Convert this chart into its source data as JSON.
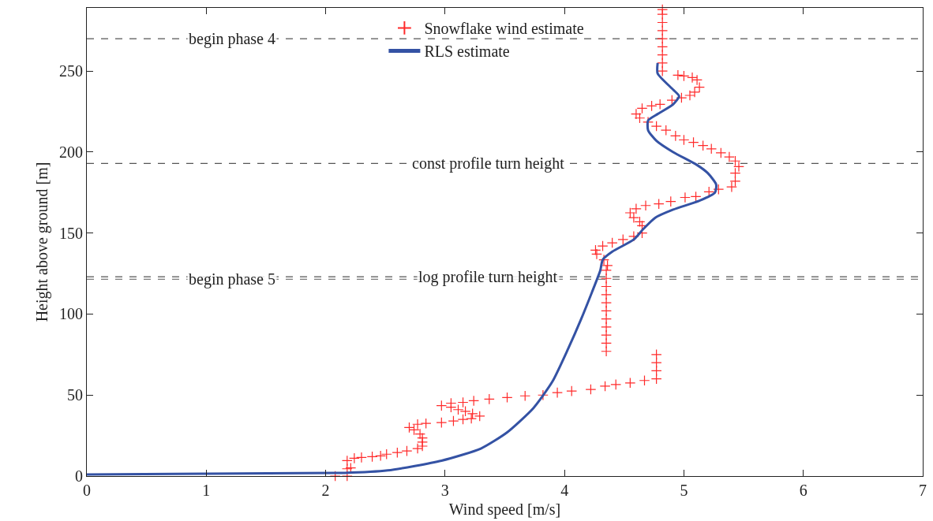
{
  "chart_data": {
    "type": "scatter",
    "xlabel": "Wind speed [m/s]",
    "ylabel": "Height above ground [m]",
    "xlim": [
      0,
      7
    ],
    "xticks": [
      0,
      1,
      2,
      3,
      4,
      5,
      6,
      7
    ],
    "ylim": [
      0,
      289
    ],
    "yticks": [
      0,
      50,
      100,
      150,
      200,
      250
    ],
    "grid": false,
    "legend": "top",
    "series": [
      {
        "name": "Snowflake wind estimate",
        "marker": "cross",
        "color": "#ff2a2a",
        "x": [
          2.08,
          2.18,
          2.18,
          2.21,
          2.18,
          2.24,
          2.3,
          2.39,
          2.46,
          2.51,
          2.6,
          2.68,
          2.77,
          2.81,
          2.81,
          2.81,
          2.79,
          2.74,
          2.7,
          2.77,
          2.84,
          2.97,
          3.07,
          3.15,
          3.22,
          3.29,
          3.23,
          3.17,
          3.11,
          3.05,
          2.97,
          3.05,
          3.15,
          3.24,
          3.37,
          3.52,
          3.67,
          3.82,
          3.94,
          4.06,
          4.22,
          4.34,
          4.43,
          4.55,
          4.67,
          4.77,
          4.77,
          4.77,
          4.77,
          4.35,
          4.35,
          4.35,
          4.35,
          4.35,
          4.35,
          4.35,
          4.35,
          4.35,
          4.35,
          4.35,
          4.36,
          4.33,
          4.27,
          4.26,
          4.32,
          4.4,
          4.49,
          4.58,
          4.65,
          4.65,
          4.63,
          4.58,
          4.55,
          4.6,
          4.68,
          4.79,
          4.89,
          5.01,
          5.1,
          5.21,
          5.29,
          5.4,
          5.43,
          5.43,
          5.46,
          5.43,
          5.38,
          5.31,
          5.23,
          5.16,
          5.08,
          5.0,
          4.93,
          4.85,
          4.77,
          4.7,
          4.63,
          4.6,
          4.65,
          4.73,
          4.8,
          4.9,
          4.98,
          5.05,
          5.09,
          5.13,
          5.11,
          5.07,
          5.0,
          4.95,
          4.82,
          4.82,
          4.82,
          4.82,
          4.82,
          4.82,
          4.82,
          4.82,
          4.82
        ],
        "values": [
          0,
          0,
          4.5,
          5,
          9.5,
          11,
          11.5,
          12,
          12.5,
          13.5,
          14.5,
          15.5,
          17,
          18.5,
          21,
          23.5,
          26,
          28.5,
          30,
          32,
          32.5,
          33,
          34,
          35,
          35.5,
          37,
          38.5,
          40,
          41,
          42.5,
          43.5,
          45,
          45.5,
          46.5,
          47.5,
          48.5,
          49.5,
          50,
          51.5,
          52.5,
          53.5,
          55.5,
          56.5,
          57.5,
          59,
          60,
          65,
          70,
          75,
          77,
          82,
          87,
          92,
          97,
          102,
          107,
          112,
          117,
          122,
          127,
          130,
          133.5,
          137,
          139.5,
          142,
          144,
          146,
          148,
          150,
          154.5,
          157,
          159.5,
          162.5,
          165,
          167,
          168,
          169.5,
          172,
          172.5,
          175.5,
          177,
          178.5,
          182,
          187,
          191,
          194.5,
          197,
          199.5,
          202,
          204,
          206,
          207.5,
          210,
          213.5,
          216,
          218.5,
          221,
          223.5,
          227,
          228.5,
          229.5,
          232,
          233.5,
          235,
          237,
          240,
          244.5,
          246,
          247,
          247.5,
          250,
          255,
          260,
          265,
          270,
          275,
          280,
          285,
          288
        ]
      },
      {
        "name": "RLS estimate",
        "type": "line",
        "line_style": "solid",
        "marker": "none",
        "color": "#3452a4",
        "x": [
          0,
          1.0,
          2.08,
          2.16,
          2.52,
          2.97,
          3.3,
          3.52,
          3.74,
          3.9,
          4.03,
          4.14,
          4.23,
          4.3,
          4.32,
          4.4,
          4.58,
          4.66,
          4.76,
          4.91,
          5.13,
          5.26,
          5.27,
          5.2,
          5.11,
          4.91,
          4.77,
          4.7,
          4.7,
          4.78,
          4.91,
          4.96,
          4.91,
          4.78,
          4.78
        ],
        "values": [
          1,
          1.5,
          2,
          2,
          3.5,
          9.5,
          17,
          27,
          42,
          58.5,
          78.5,
          97,
          113.5,
          127,
          133.5,
          138.5,
          146,
          152.5,
          159.5,
          164.5,
          170,
          175,
          180,
          187,
          192,
          200,
          207,
          213.5,
          219.5,
          223.5,
          229.5,
          234.5,
          238.5,
          248.5,
          255
        ]
      }
    ],
    "ref_lines": [
      {
        "axis": "y",
        "value": 270,
        "label": "begin phase 4",
        "color": "#555555",
        "line_style": "dashed"
      },
      {
        "axis": "y",
        "value": 193,
        "label": "const profile turn height",
        "color": "#555555",
        "line_style": "dashed"
      },
      {
        "axis": "y",
        "value": 121.5,
        "label": "begin phase 5",
        "color": "#555555",
        "line_style": "dashed"
      },
      {
        "axis": "y",
        "value": 123,
        "label": "log profile turn height",
        "color": "#555555",
        "line_style": "dashed"
      }
    ]
  }
}
